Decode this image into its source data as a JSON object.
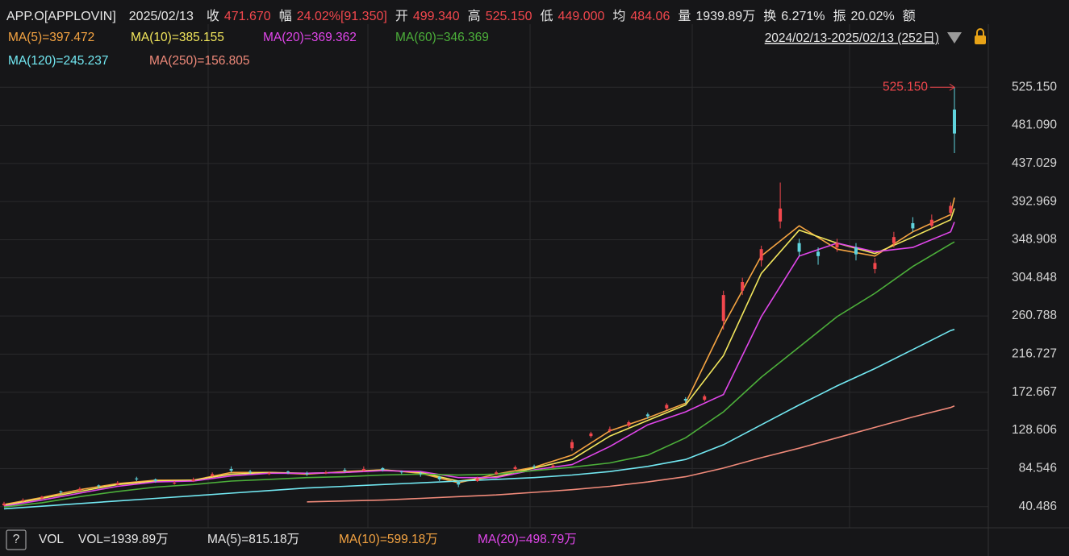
{
  "header": {
    "symbol": "APP.O[APPLOVIN]",
    "date": "2025/02/13",
    "fields": [
      {
        "label": "收",
        "value": "471.670",
        "tone": "up"
      },
      {
        "label": "幅",
        "value": "24.02%[91.350]",
        "tone": "up"
      },
      {
        "label": "开",
        "value": "499.340",
        "tone": "up"
      },
      {
        "label": "高",
        "value": "525.150",
        "tone": "up"
      },
      {
        "label": "低",
        "value": "449.000",
        "tone": "up"
      },
      {
        "label": "均",
        "value": "484.06",
        "tone": "up"
      },
      {
        "label": "量",
        "value": "1939.89万",
        "tone": "plain"
      },
      {
        "label": "换",
        "value": "6.271%",
        "tone": "plain"
      },
      {
        "label": "振",
        "value": "20.02%",
        "tone": "plain"
      },
      {
        "label": "额",
        "value": "",
        "tone": "plain"
      }
    ]
  },
  "chart_data": {
    "type": "candlestick",
    "range_label": "2024/02/13-2025/02/13 (252日)",
    "max_label": "525.150",
    "up_color": "#f2474d",
    "down_color": "#5fd3dc",
    "grid": true,
    "ylim": [
      16,
      598
    ],
    "yticks": [
      40.486,
      84.546,
      128.606,
      172.667,
      216.727,
      260.788,
      304.848,
      348.908,
      392.969,
      437.029,
      {
        "value": 481.09,
        "label": "481.090"
      },
      {
        "value": 525.15,
        "label": "525.150"
      }
    ],
    "xlim": [
      0,
      251
    ],
    "candles": {
      "x": [
        0,
        5,
        10,
        15,
        20,
        25,
        30,
        35,
        40,
        45,
        50,
        55,
        60,
        65,
        70,
        75,
        80,
        85,
        90,
        95,
        100,
        105,
        110,
        115,
        120,
        125,
        130,
        135,
        140,
        145,
        150,
        155,
        160,
        165,
        170,
        175,
        180,
        185,
        190,
        195,
        200,
        205,
        210,
        215,
        220,
        225,
        230,
        235,
        240,
        245,
        250,
        251
      ],
      "open": [
        42,
        47,
        50,
        58,
        59,
        65,
        66,
        73,
        72,
        67,
        70,
        76,
        84,
        81,
        78,
        81,
        79,
        79,
        83,
        82,
        85,
        81,
        79,
        75,
        69,
        70,
        78,
        84,
        87,
        86,
        108,
        122,
        128,
        134,
        147,
        154,
        165,
        164,
        255,
        290,
        325,
        370,
        345,
        335,
        340,
        340,
        315,
        345,
        368,
        365,
        380,
        499.34
      ],
      "high": [
        46,
        50,
        53,
        59,
        63,
        66,
        70,
        75,
        73,
        70,
        74,
        80,
        87,
        83,
        81,
        82,
        81,
        82,
        85,
        87,
        86,
        82,
        81,
        76,
        70,
        75,
        82,
        88,
        89,
        90,
        118,
        127,
        133,
        140,
        149,
        160,
        167,
        170,
        290,
        305,
        342,
        415,
        350,
        340,
        350,
        345,
        328,
        358,
        375,
        378,
        392,
        525.15
      ],
      "low": [
        41,
        46,
        49,
        55,
        58,
        62,
        65,
        70,
        68,
        66,
        69,
        75,
        80,
        78,
        77,
        78,
        76,
        78,
        80,
        81,
        81,
        78,
        75,
        70,
        63,
        69,
        77,
        83,
        84,
        85,
        105,
        120,
        126,
        132,
        142,
        152,
        160,
        162,
        245,
        285,
        318,
        362,
        330,
        320,
        335,
        325,
        310,
        340,
        358,
        362,
        376,
        449
      ],
      "close": [
        44,
        48,
        52,
        57,
        61,
        64,
        68,
        72,
        70,
        68,
        72,
        78,
        82,
        80,
        79,
        80,
        78,
        80,
        82,
        84,
        83,
        80,
        78,
        72,
        66,
        73,
        80,
        86,
        86,
        88,
        115,
        125,
        130,
        138,
        145,
        158,
        163,
        168,
        285,
        300,
        338,
        385,
        335,
        330,
        345,
        332,
        322,
        352,
        362,
        372,
        388,
        471.67
      ]
    },
    "x": [
      0,
      10,
      20,
      30,
      40,
      50,
      60,
      70,
      80,
      90,
      100,
      110,
      120,
      130,
      140,
      150,
      160,
      170,
      180,
      190,
      200,
      210,
      220,
      230,
      240,
      250,
      251
    ],
    "series": [
      {
        "name": "MA(5)=397.472",
        "color": "#f5a442",
        "values": [
          43,
          51,
          60,
          67,
          71,
          71,
          80,
          80,
          78,
          81,
          83,
          79,
          68,
          78,
          86,
          100,
          128,
          143,
          160,
          250,
          330,
          365,
          338,
          330,
          358,
          378,
          397.472
        ]
      },
      {
        "name": "MA(10)=385.155",
        "color": "#f2e65c",
        "values": [
          42,
          50,
          58,
          66,
          70,
          71,
          78,
          80,
          79,
          80,
          83,
          80,
          70,
          75,
          85,
          95,
          122,
          140,
          158,
          215,
          310,
          360,
          345,
          333,
          352,
          372,
          385.155
        ]
      },
      {
        "name": "MA(20)=369.362",
        "color": "#e046ea",
        "values": [
          41,
          48,
          56,
          64,
          69,
          70,
          76,
          79,
          79,
          80,
          82,
          81,
          74,
          74,
          83,
          89,
          110,
          135,
          150,
          170,
          260,
          330,
          345,
          335,
          340,
          358,
          369.362
        ]
      },
      {
        "name": "MA(60)=346.369",
        "color": "#4caf3a",
        "values": [
          40,
          45,
          52,
          58,
          63,
          66,
          70,
          72,
          74,
          75,
          77,
          78,
          77,
          78,
          82,
          86,
          91,
          100,
          120,
          150,
          190,
          225,
          260,
          287,
          318,
          344,
          346.369
        ]
      },
      {
        "name": "MA(120)=245.237",
        "color": "#72e8f2",
        "values": [
          38,
          41,
          44,
          47,
          50,
          53,
          56,
          59,
          62,
          64,
          66,
          68,
          70,
          72,
          74,
          77,
          81,
          87,
          95,
          112,
          135,
          158,
          180,
          200,
          222,
          244,
          245.237
        ]
      },
      {
        "name": "MA(250)=156.805",
        "color": "#f08a7a",
        "values": [
          null,
          null,
          null,
          null,
          null,
          null,
          null,
          null,
          46,
          47,
          48,
          50,
          52,
          54,
          57,
          60,
          64,
          69,
          75,
          85,
          97,
          108,
          120,
          132,
          144,
          155,
          156.805
        ]
      }
    ]
  },
  "volume": {
    "help": "?",
    "title": "VOL",
    "items": [
      {
        "text": "VOL=1939.89万",
        "color": "#e6e6e6"
      },
      {
        "text": "MA(5)=815.18万",
        "color": "#e6e6e6"
      },
      {
        "text": "MA(10)=599.18万",
        "color": "#f5a442"
      },
      {
        "text": "MA(20)=498.79万",
        "color": "#e046ea"
      }
    ]
  }
}
